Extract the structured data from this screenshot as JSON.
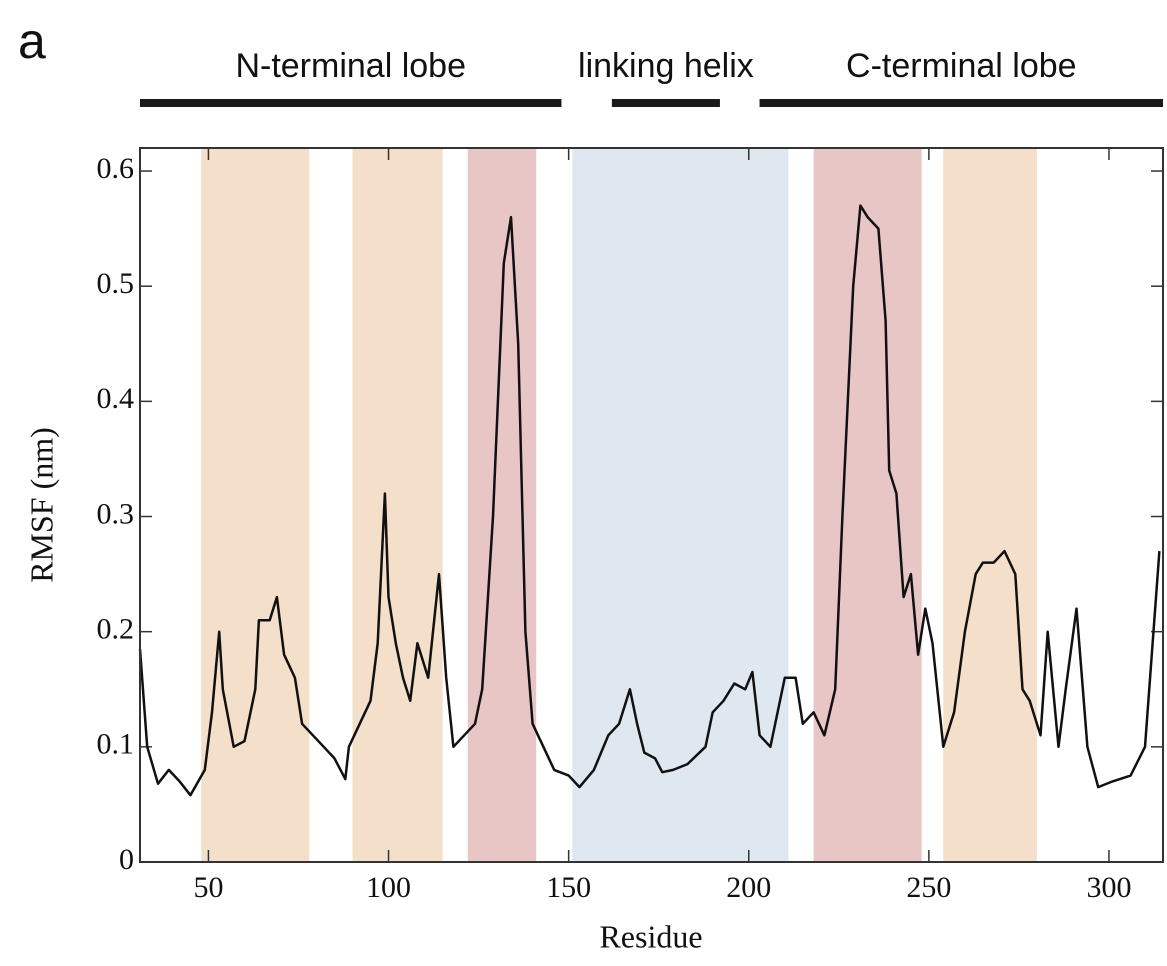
{
  "chart_data": {
    "type": "line",
    "panel_label": "a",
    "x_label": "Residue",
    "y_label": "RMSF (nm)",
    "xlim": [
      31,
      315
    ],
    "ylim": [
      0,
      0.62
    ],
    "xticks": [
      50,
      100,
      150,
      200,
      250,
      300
    ],
    "yticks": [
      0,
      0.1,
      0.2,
      0.3,
      0.4,
      0.5,
      0.6
    ],
    "domains": [
      {
        "label": "N-terminal lobe",
        "range": [
          31,
          148
        ]
      },
      {
        "label": "linking helix",
        "range": [
          162,
          192
        ]
      },
      {
        "label": "C-terminal lobe",
        "range": [
          203,
          315
        ]
      }
    ],
    "regions": [
      {
        "range": [
          48,
          78
        ],
        "color": "#f3dfca"
      },
      {
        "range": [
          90,
          115
        ],
        "color": "#f3dfca"
      },
      {
        "range": [
          122,
          141
        ],
        "color": "#e9c6c6"
      },
      {
        "range": [
          151,
          211
        ],
        "color": "#dfe7f1"
      },
      {
        "range": [
          218,
          248
        ],
        "color": "#e9c6c6"
      },
      {
        "range": [
          254,
          280
        ],
        "color": "#f3dfca"
      }
    ],
    "series": [
      {
        "color": "#111111",
        "x": [
          31,
          33,
          36,
          39,
          42,
          45,
          49,
          51,
          53,
          54,
          57,
          60,
          63,
          64,
          67,
          69,
          71,
          74,
          76,
          79,
          82,
          85,
          88,
          89,
          92,
          95,
          97,
          99,
          100,
          102,
          104,
          106,
          108,
          111,
          114,
          116,
          118,
          121,
          124,
          126,
          129,
          132,
          134,
          136,
          138,
          140,
          143,
          146,
          150,
          153,
          157,
          161,
          164,
          167,
          169,
          171,
          174,
          176,
          179,
          183,
          188,
          190,
          193,
          196,
          199,
          201,
          203,
          206,
          210,
          213,
          215,
          218,
          221,
          224,
          226,
          229,
          231,
          233,
          236,
          238,
          239,
          241,
          243,
          245,
          247,
          249,
          251,
          254,
          257,
          260,
          263,
          265,
          268,
          271,
          274,
          276,
          278,
          281,
          283,
          286,
          288,
          291,
          294,
          297,
          301,
          306,
          310,
          314
        ],
        "values": [
          0.185,
          0.1,
          0.068,
          0.08,
          0.07,
          0.058,
          0.08,
          0.13,
          0.2,
          0.15,
          0.1,
          0.105,
          0.15,
          0.21,
          0.21,
          0.23,
          0.18,
          0.16,
          0.12,
          0.11,
          0.1,
          0.09,
          0.072,
          0.1,
          0.12,
          0.14,
          0.19,
          0.32,
          0.23,
          0.19,
          0.16,
          0.14,
          0.19,
          0.16,
          0.25,
          0.16,
          0.1,
          0.11,
          0.12,
          0.15,
          0.3,
          0.52,
          0.56,
          0.45,
          0.2,
          0.12,
          0.1,
          0.08,
          0.075,
          0.065,
          0.08,
          0.11,
          0.12,
          0.15,
          0.12,
          0.095,
          0.09,
          0.078,
          0.08,
          0.085,
          0.1,
          0.13,
          0.14,
          0.155,
          0.15,
          0.165,
          0.11,
          0.1,
          0.16,
          0.16,
          0.12,
          0.13,
          0.11,
          0.15,
          0.3,
          0.5,
          0.57,
          0.56,
          0.55,
          0.47,
          0.34,
          0.32,
          0.23,
          0.25,
          0.18,
          0.22,
          0.19,
          0.1,
          0.13,
          0.2,
          0.25,
          0.26,
          0.26,
          0.27,
          0.25,
          0.15,
          0.14,
          0.11,
          0.2,
          0.1,
          0.15,
          0.22,
          0.1,
          0.065,
          0.07,
          0.075,
          0.1,
          0.27
        ]
      }
    ]
  }
}
